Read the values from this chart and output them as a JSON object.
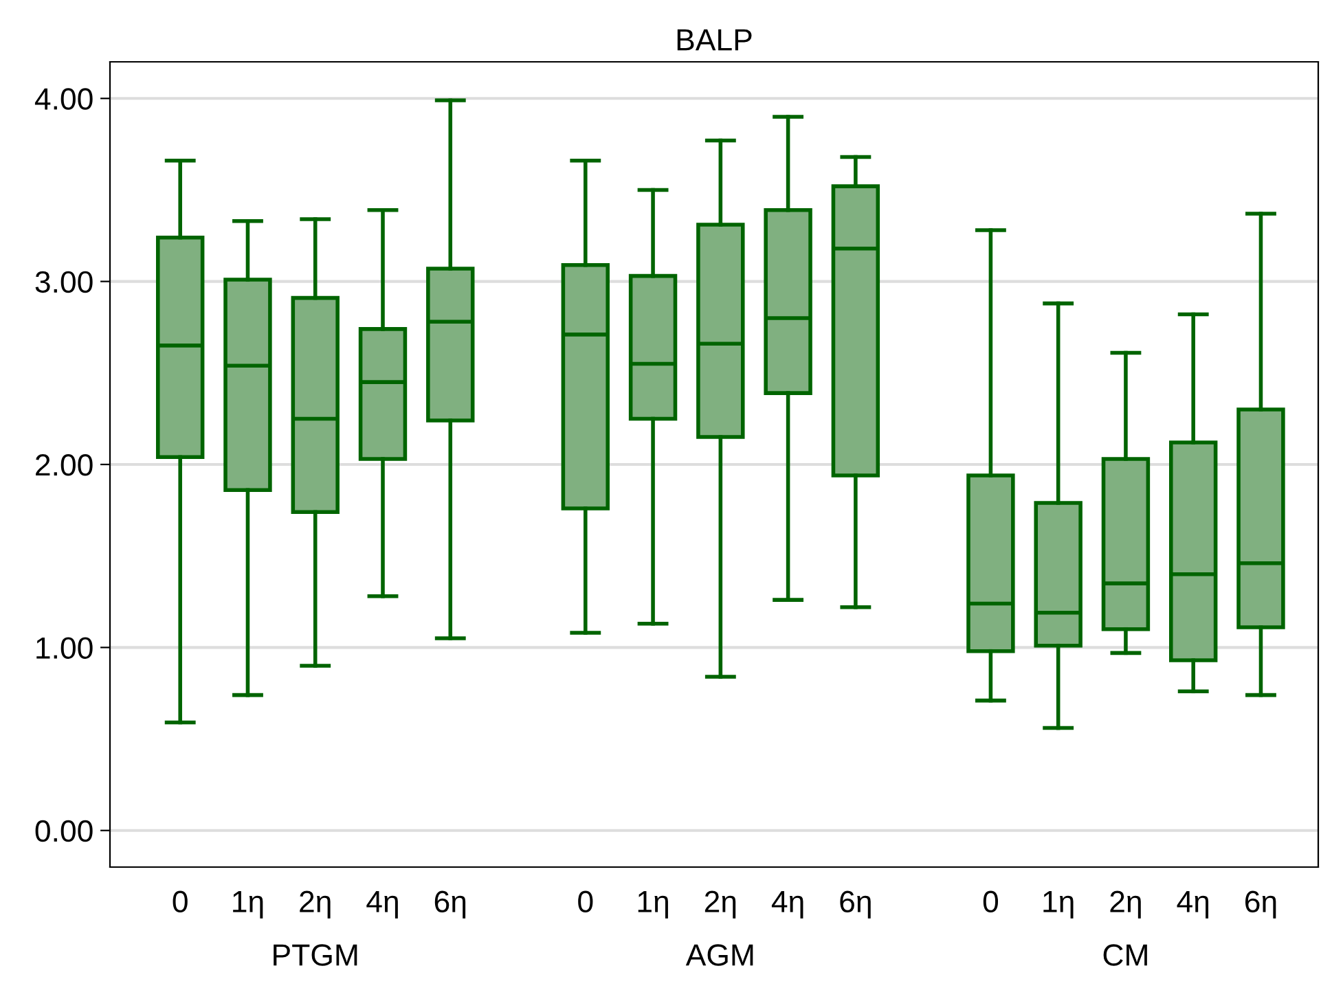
{
  "chart_data": {
    "type": "box",
    "title": "BALP",
    "categories": [
      "0",
      "1η",
      "2η",
      "4η",
      "6η",
      "0",
      "1η",
      "2η",
      "4η",
      "6η",
      "0",
      "1η",
      "2η",
      "4η",
      "6η"
    ],
    "annotations": [
      "PTGM",
      "AGM",
      "CM"
    ],
    "series": [
      {
        "color": "#80b080",
        "boxes": [
          {
            "low": 0.59,
            "q1": 2.04,
            "median": 2.65,
            "q3": 3.24,
            "high": 3.66
          },
          {
            "low": 0.74,
            "q1": 1.86,
            "median": 2.54,
            "q3": 3.01,
            "high": 3.33
          },
          {
            "low": 0.9,
            "q1": 1.74,
            "median": 2.25,
            "q3": 2.91,
            "high": 3.34
          },
          {
            "low": 1.28,
            "q1": 2.03,
            "median": 2.45,
            "q3": 2.74,
            "high": 3.39
          },
          {
            "low": 1.05,
            "q1": 2.24,
            "median": 2.78,
            "q3": 3.07,
            "high": 3.99
          },
          {
            "low": 1.08,
            "q1": 1.76,
            "median": 2.71,
            "q3": 3.09,
            "high": 3.66
          },
          {
            "low": 1.13,
            "q1": 2.25,
            "median": 2.55,
            "q3": 3.03,
            "high": 3.5
          },
          {
            "low": 0.84,
            "q1": 2.15,
            "median": 2.66,
            "q3": 3.31,
            "high": 3.77
          },
          {
            "low": 1.26,
            "q1": 2.39,
            "median": 2.8,
            "q3": 3.39,
            "high": 3.9
          },
          {
            "low": 1.22,
            "q1": 1.94,
            "median": 3.18,
            "q3": 3.52,
            "high": 3.68
          },
          {
            "low": 0.71,
            "q1": 0.98,
            "median": 1.24,
            "q3": 1.94,
            "high": 3.28
          },
          {
            "low": 0.56,
            "q1": 1.01,
            "median": 1.19,
            "q3": 1.79,
            "high": 2.88
          },
          {
            "low": 0.97,
            "q1": 1.1,
            "median": 1.35,
            "q3": 2.03,
            "high": 2.61
          },
          {
            "low": 0.76,
            "q1": 0.93,
            "median": 1.4,
            "q3": 2.12,
            "high": 2.82
          },
          {
            "low": 0.74,
            "q1": 1.11,
            "median": 1.46,
            "q3": 2.3,
            "high": 3.37
          }
        ]
      }
    ],
    "ylim": [
      -0.2,
      4.2
    ],
    "yticks": [
      {
        "value": 0,
        "label": "0.00"
      },
      {
        "value": 1,
        "label": "1.00"
      },
      {
        "value": 2,
        "label": "2.00"
      },
      {
        "value": 3,
        "label": "3.00"
      },
      {
        "value": 4,
        "label": "4.00"
      }
    ],
    "grid": "y"
  }
}
